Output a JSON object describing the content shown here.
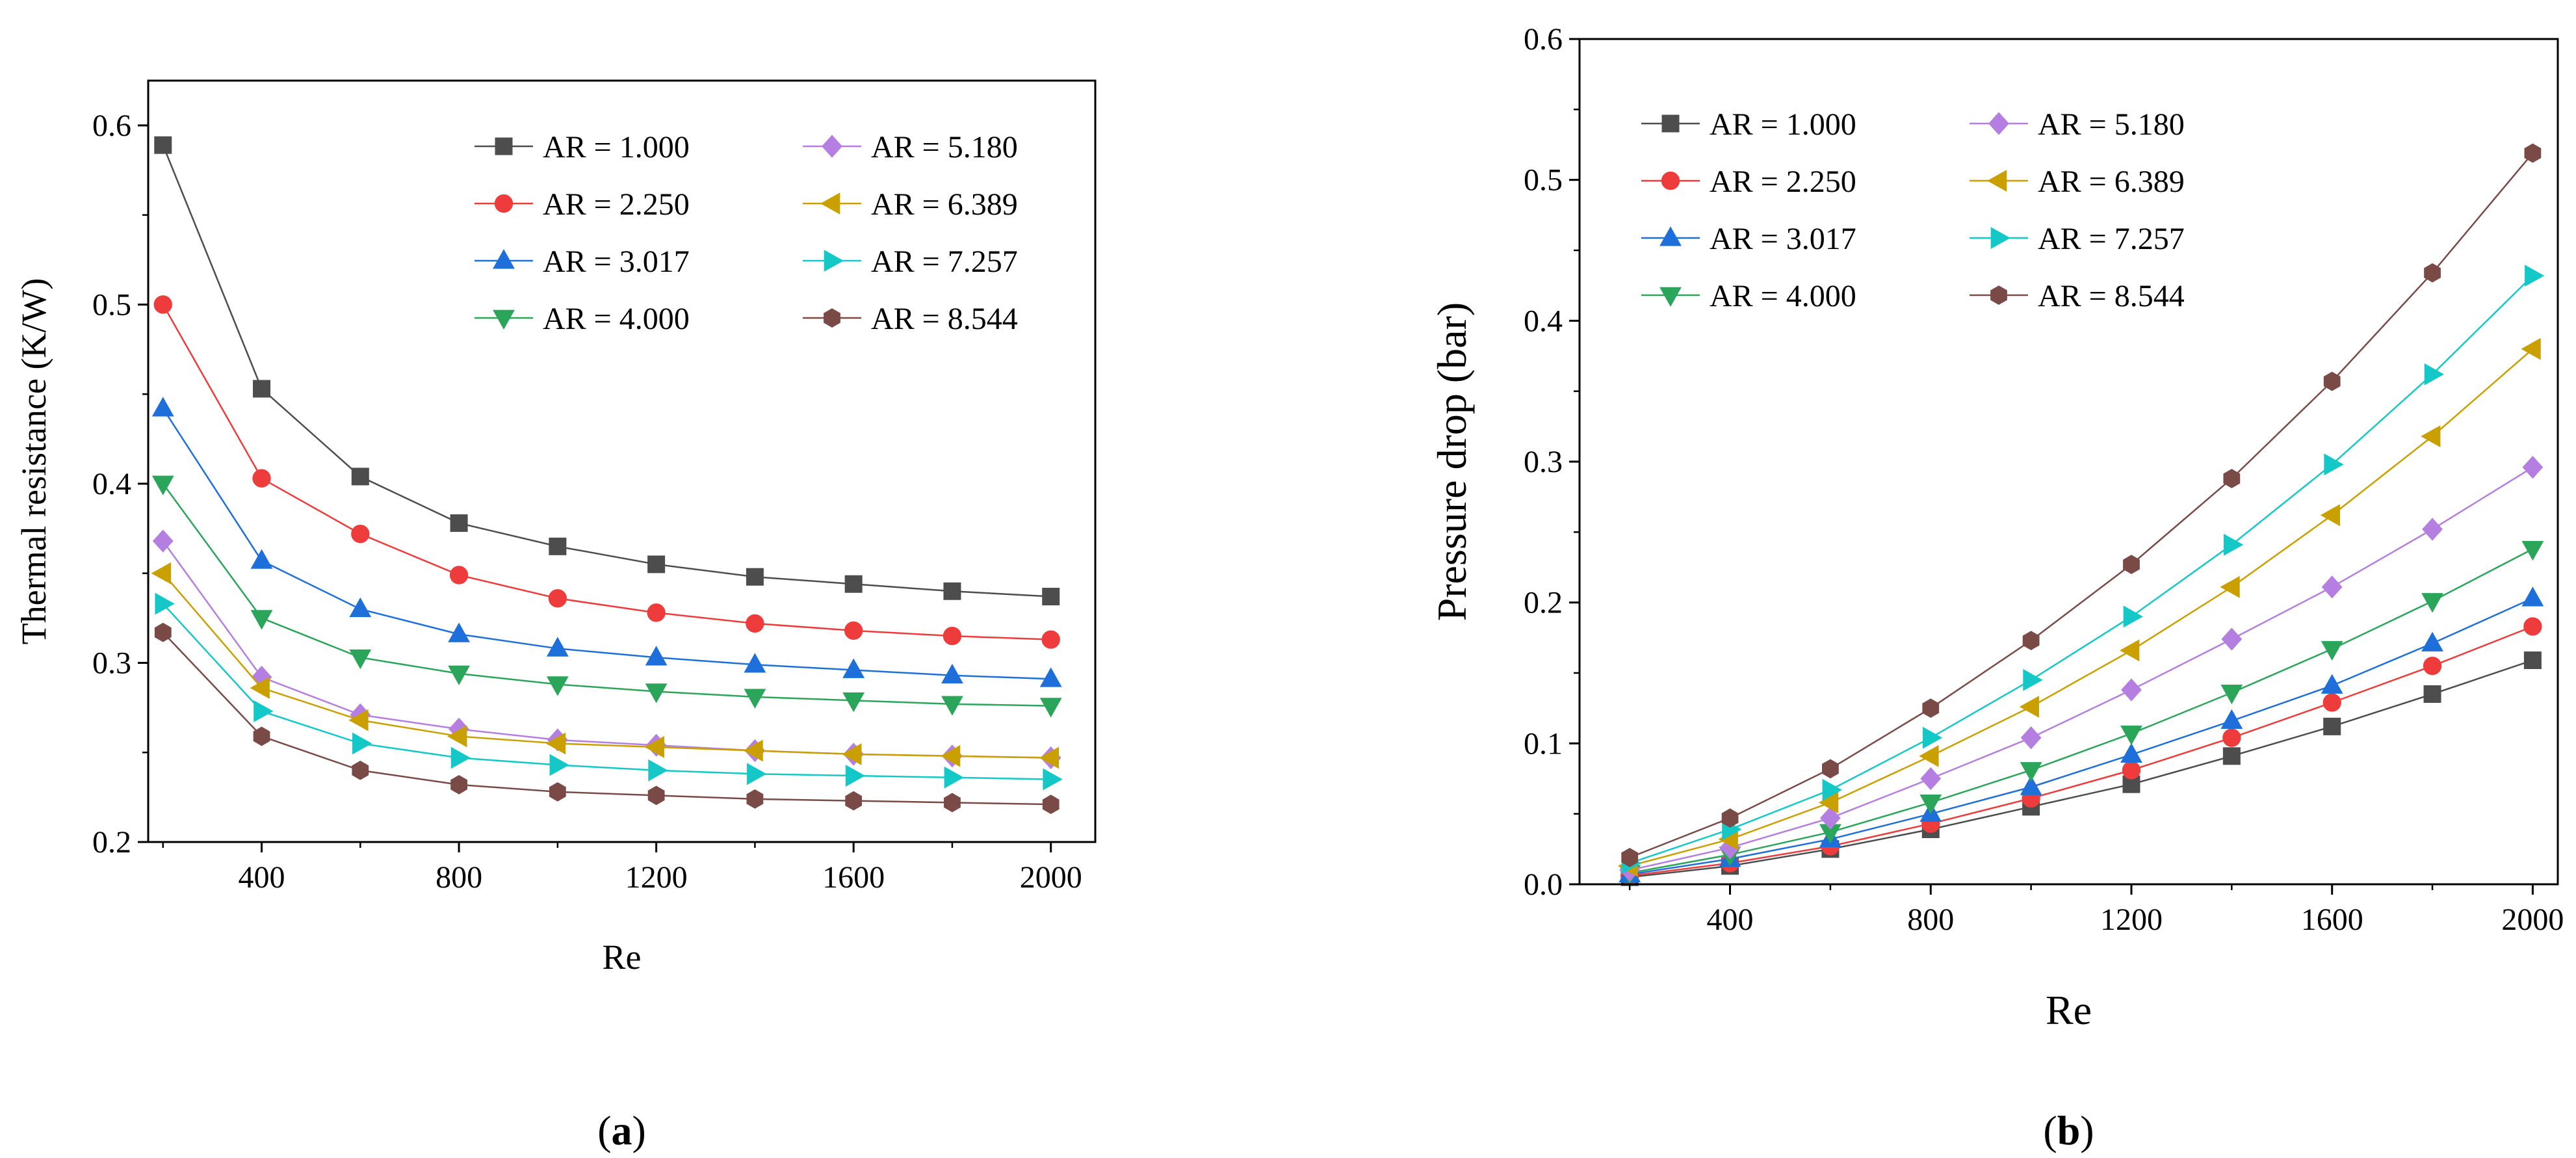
{
  "chart_data": [
    {
      "type": "line",
      "panel_label": "a",
      "title": "",
      "xlabel": "Re",
      "ylabel": "Thermal resistance (K/W)",
      "xlim": [
        170,
        2090
      ],
      "ylim": [
        0.2,
        0.625
      ],
      "xticks": [
        400,
        800,
        1200,
        1600,
        2000
      ],
      "yticks": [
        0.2,
        0.3,
        0.4,
        0.5,
        0.6
      ],
      "ytick_labels": [
        "0.2",
        "0.3",
        "0.4",
        "0.5",
        "0.6"
      ],
      "x": [
        200,
        400,
        600,
        800,
        1000,
        1200,
        1400,
        1600,
        1800,
        2000
      ],
      "legend_position": "top-right",
      "series": [
        {
          "name": "AR = 1.000",
          "color": "#4d4d4d",
          "marker": "square",
          "values": [
            0.589,
            0.453,
            0.404,
            0.378,
            0.365,
            0.355,
            0.348,
            0.344,
            0.34,
            0.337
          ]
        },
        {
          "name": "AR = 2.250",
          "color": "#ee3b3b",
          "marker": "circle",
          "values": [
            0.5,
            0.403,
            0.372,
            0.349,
            0.336,
            0.328,
            0.322,
            0.318,
            0.315,
            0.313
          ]
        },
        {
          "name": "AR = 3.017",
          "color": "#1e6fd9",
          "marker": "triangle-up",
          "values": [
            0.442,
            0.357,
            0.33,
            0.316,
            0.308,
            0.303,
            0.299,
            0.296,
            0.293,
            0.291
          ]
        },
        {
          "name": "AR = 4.000",
          "color": "#2aa55a",
          "marker": "triangle-down",
          "values": [
            0.4,
            0.325,
            0.303,
            0.294,
            0.288,
            0.284,
            0.281,
            0.279,
            0.277,
            0.276
          ]
        },
        {
          "name": "AR = 5.180",
          "color": "#b47fe0",
          "marker": "diamond",
          "values": [
            0.368,
            0.292,
            0.271,
            0.263,
            0.257,
            0.254,
            0.251,
            0.249,
            0.248,
            0.247
          ]
        },
        {
          "name": "AR = 6.389",
          "color": "#c9a000",
          "marker": "triangle-left",
          "values": [
            0.35,
            0.286,
            0.268,
            0.259,
            0.255,
            0.253,
            0.251,
            0.249,
            0.248,
            0.247
          ]
        },
        {
          "name": "AR = 7.257",
          "color": "#14c8c8",
          "marker": "triangle-right",
          "values": [
            0.333,
            0.273,
            0.255,
            0.247,
            0.243,
            0.24,
            0.238,
            0.237,
            0.236,
            0.235
          ]
        },
        {
          "name": "AR = 8.544",
          "color": "#7a4a46",
          "marker": "hexagon",
          "values": [
            0.317,
            0.259,
            0.24,
            0.232,
            0.228,
            0.226,
            0.224,
            0.223,
            0.222,
            0.221
          ]
        }
      ]
    },
    {
      "type": "line",
      "panel_label": "b",
      "title": "",
      "xlabel": "Re",
      "ylabel": "Pressure drop (bar)",
      "xlim": [
        100,
        2050
      ],
      "ylim": [
        0.0,
        0.6
      ],
      "xticks": [
        400,
        800,
        1200,
        1600,
        2000
      ],
      "yticks": [
        0.0,
        0.1,
        0.2,
        0.3,
        0.4,
        0.5,
        0.6
      ],
      "ytick_labels": [
        "0.0",
        "0.1",
        "0.2",
        "0.3",
        "0.4",
        "0.5",
        "0.6"
      ],
      "x": [
        200,
        400,
        600,
        800,
        1000,
        1200,
        1400,
        1600,
        1800,
        2000
      ],
      "legend_position": "top-left",
      "series": [
        {
          "name": "AR = 1.000",
          "color": "#4d4d4d",
          "marker": "square",
          "values": [
            0.005,
            0.013,
            0.025,
            0.039,
            0.055,
            0.071,
            0.091,
            0.112,
            0.135,
            0.159
          ]
        },
        {
          "name": "AR = 2.250",
          "color": "#ee3b3b",
          "marker": "circle",
          "values": [
            0.006,
            0.015,
            0.027,
            0.043,
            0.061,
            0.081,
            0.104,
            0.129,
            0.155,
            0.183
          ]
        },
        {
          "name": "AR = 3.017",
          "color": "#1e6fd9",
          "marker": "triangle-up",
          "values": [
            0.007,
            0.018,
            0.032,
            0.05,
            0.069,
            0.092,
            0.116,
            0.141,
            0.171,
            0.203
          ]
        },
        {
          "name": "AR = 4.000",
          "color": "#2aa55a",
          "marker": "triangle-down",
          "values": [
            0.008,
            0.021,
            0.037,
            0.058,
            0.081,
            0.107,
            0.136,
            0.167,
            0.201,
            0.238
          ]
        },
        {
          "name": "AR = 5.180",
          "color": "#b47fe0",
          "marker": "diamond",
          "values": [
            0.01,
            0.026,
            0.047,
            0.075,
            0.104,
            0.138,
            0.174,
            0.211,
            0.252,
            0.296
          ]
        },
        {
          "name": "AR = 6.389",
          "color": "#c9a000",
          "marker": "triangle-left",
          "values": [
            0.013,
            0.032,
            0.058,
            0.091,
            0.126,
            0.166,
            0.211,
            0.262,
            0.318,
            0.38
          ]
        },
        {
          "name": "AR = 7.257",
          "color": "#14c8c8",
          "marker": "triangle-right",
          "values": [
            0.015,
            0.039,
            0.067,
            0.104,
            0.145,
            0.19,
            0.241,
            0.298,
            0.362,
            0.432
          ]
        },
        {
          "name": "AR = 8.544",
          "color": "#7a4a46",
          "marker": "hexagon",
          "values": [
            0.019,
            0.047,
            0.082,
            0.125,
            0.173,
            0.227,
            0.288,
            0.357,
            0.434,
            0.519
          ]
        }
      ]
    }
  ]
}
